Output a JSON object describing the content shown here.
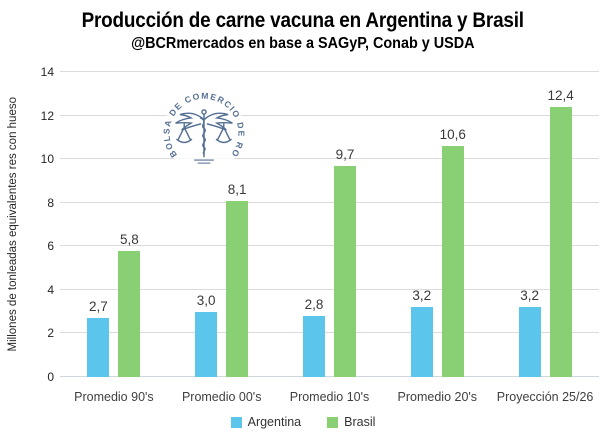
{
  "title": "Producción de carne vacuna en Argentina y Brasil",
  "subtitle": "@BCRmercados en base a SAGyP, Conab y USDA",
  "watermark": {
    "name": "bolsa-de-comercio-de-rosario-seal",
    "ring_text": "BOLSA DE COMERCIO DE ROSARIO",
    "color": "#31517d"
  },
  "chart_data": {
    "type": "bar",
    "title": "Producción de carne vacuna en Argentina y Brasil",
    "subtitle": "@BCRmercados en base a SAGyP, Conab y USDA",
    "categories": [
      "Promedio 90's",
      "Promedio 00's",
      "Promedio 10's",
      "Promedio 20's",
      "Proyección 25/26"
    ],
    "series": [
      {
        "name": "Argentina",
        "color": "#5bc5ec",
        "values": [
          2.7,
          3.0,
          2.8,
          3.2,
          3.2
        ],
        "labels": [
          "2,7",
          "3,0",
          "2,8",
          "3,2",
          "3,2"
        ]
      },
      {
        "name": "Brasil",
        "color": "#89d075",
        "values": [
          5.8,
          8.1,
          9.7,
          10.6,
          12.4
        ],
        "labels": [
          "5,8",
          "8,1",
          "9,7",
          "10,6",
          "12,4"
        ]
      }
    ],
    "xlabel": "",
    "ylabel": "Millones de tonleadas equivalentes res con hueso",
    "ylim": [
      0,
      14
    ],
    "yticks": [
      0,
      2,
      4,
      6,
      8,
      10,
      12,
      14
    ],
    "grid": true,
    "legend_position": "bottom"
  },
  "colors": {
    "gridline": "#dbdbdb",
    "axis_line": "#cfd6dc",
    "title_text": "#000000",
    "tick_text": "#262626",
    "data_label_text": "#3a3a3a",
    "category_text": "#404040"
  }
}
